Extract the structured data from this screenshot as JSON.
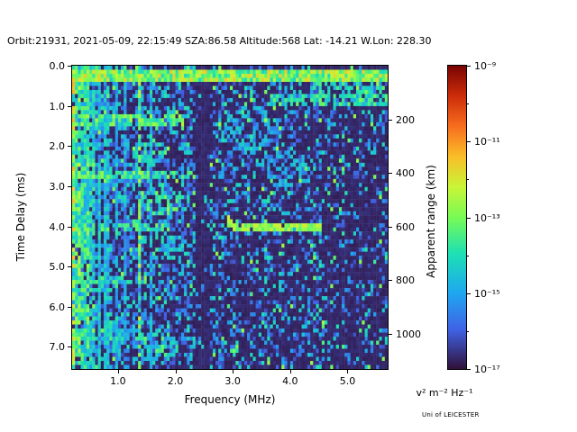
{
  "credit": "Uni of LEICESTER",
  "chart_data": {
    "type": "heatmap",
    "title": "Orbit:21931, 2021-05-09, 22:15:49 SZA:86.58 Altitude:568 Lat: -14.21 W.Lon: 228.30",
    "xlabel": "Frequency (MHz)",
    "ylabel": "Time Delay (ms)",
    "ylabel_right": "Apparent range (km)",
    "x_range_mhz": [
      0.2,
      5.7
    ],
    "y_range_ms": [
      0.0,
      7.55
    ],
    "km_per_ms": 150,
    "x_ticks": [
      {
        "v": 1.0,
        "label": "1.0"
      },
      {
        "v": 2.0,
        "label": "2.0"
      },
      {
        "v": 3.0,
        "label": "3.0"
      },
      {
        "v": 4.0,
        "label": "4.0"
      },
      {
        "v": 5.0,
        "label": "5.0"
      }
    ],
    "y_ticks": [
      {
        "v": 0.0,
        "label": "0.0"
      },
      {
        "v": 1.0,
        "label": "1.0"
      },
      {
        "v": 2.0,
        "label": "2.0"
      },
      {
        "v": 3.0,
        "label": "3.0"
      },
      {
        "v": 4.0,
        "label": "4.0"
      },
      {
        "v": 5.0,
        "label": "5.0"
      },
      {
        "v": 6.0,
        "label": "6.0"
      },
      {
        "v": 7.0,
        "label": "7.0"
      }
    ],
    "y2_ticks": [
      {
        "v": 200,
        "label": "200"
      },
      {
        "v": 400,
        "label": "400"
      },
      {
        "v": 600,
        "label": "600"
      },
      {
        "v": 800,
        "label": "800"
      },
      {
        "v": 1000,
        "label": "1000"
      }
    ],
    "colorbar": {
      "unit_label": "v² m⁻² Hz⁻¹",
      "scale": "log",
      "min": "1e-17",
      "max": "1e-9",
      "ticks": [
        {
          "exp": -9,
          "label": "10⁻⁹"
        },
        {
          "exp": -11,
          "label": "10⁻¹¹"
        },
        {
          "exp": -13,
          "label": "10⁻¹³"
        },
        {
          "exp": -15,
          "label": "10⁻¹⁵"
        },
        {
          "exp": -17,
          "label": "10⁻¹⁷"
        }
      ],
      "minor_tick_exps": [
        -10,
        -12,
        -14,
        -16
      ],
      "colormap": "turbo",
      "colormap_stops": [
        [
          0.0,
          48,
          18,
          59
        ],
        [
          0.13,
          64,
          98,
          230
        ],
        [
          0.25,
          30,
          167,
          240
        ],
        [
          0.38,
          28,
          224,
          180
        ],
        [
          0.5,
          120,
          250,
          85
        ],
        [
          0.6,
          200,
          245,
          55
        ],
        [
          0.7,
          250,
          190,
          40
        ],
        [
          0.8,
          248,
          110,
          30
        ],
        [
          0.9,
          205,
          45,
          10
        ],
        [
          1.0,
          122,
          4,
          3
        ]
      ]
    },
    "grid": {
      "ncols": 110,
      "nrows": 75
    },
    "seed": 12345,
    "background": {
      "base": 0.02,
      "jitter": 0.03
    },
    "speckle": {
      "regions": [
        {
          "f1": 2.3,
          "density": 0.42
        },
        {
          "f1": 4.6,
          "density": 0.3
        },
        {
          "f1": 5.8,
          "density": 0.2
        }
      ],
      "lo": 0.1,
      "range": 0.3,
      "pop": {
        "p": 0.04,
        "lo": 0.3,
        "range": 0.25
      }
    },
    "features": {
      "vertical_lines": [
        {
          "f": 0.22,
          "amp": 0.72
        },
        {
          "f": 0.27,
          "amp": 0.55
        },
        {
          "f": 0.33,
          "amp": 0.6
        },
        {
          "f": 0.4,
          "amp": 0.5
        },
        {
          "f": 0.47,
          "amp": 0.55
        },
        {
          "f": 0.55,
          "amp": 0.45
        },
        {
          "f": 0.66,
          "amp": 0.42
        },
        {
          "f": 0.8,
          "amp": 0.38
        },
        {
          "f": 0.97,
          "amp": 0.36
        },
        {
          "f": 1.13,
          "amp": 0.33
        },
        {
          "f": 1.36,
          "amp": 0.62
        },
        {
          "f": 1.58,
          "amp": 0.35
        }
      ],
      "line_halfwidth_mhz": 0.026,
      "line_dropout": 0.15,
      "cyclotron_bands": [
        {
          "d": 1.38,
          "amp": 0.58,
          "fmin": 0.2,
          "fmax": 2.15,
          "h": 0.13,
          "p": 0.75
        },
        {
          "d": 2.7,
          "amp": 0.55,
          "fmin": 0.2,
          "fmax": 2.3,
          "h": 0.13,
          "p": 0.7
        },
        {
          "d": 4.03,
          "amp": 0.52,
          "fmin": 0.2,
          "fmax": 1.9,
          "h": 0.13,
          "p": 0.65
        },
        {
          "d": 5.35,
          "amp": 0.5,
          "fmin": 0.2,
          "fmax": 1.5,
          "h": 0.13,
          "p": 0.6
        },
        {
          "d": 6.7,
          "amp": 0.45,
          "fmin": 0.2,
          "fmax": 1.35,
          "h": 0.13,
          "p": 0.55
        },
        {
          "d": 0.85,
          "amp": 0.5,
          "fmin": 3.6,
          "fmax": 5.7,
          "h": 0.12,
          "p": 0.7
        }
      ],
      "top_band": {
        "d0": 0.12,
        "d1": 0.42,
        "lo": 0.35,
        "range": 0.33
      },
      "echo_trace": {
        "f0": 2.88,
        "f1": 4.55,
        "d": 4.03,
        "half": 0.11,
        "amp": 0.62,
        "hook_f": 3.05,
        "hook_slope": 1.2,
        "p": 0.95
      },
      "dark_column": {
        "f0": 2.35,
        "f1": 2.62,
        "suppress": 0.22
      },
      "blobs": [
        {
          "f": 1.75,
          "d": 3.35,
          "rf": 0.35,
          "rd": 0.4,
          "amp": 0.5,
          "p": 0.5
        },
        {
          "f": 1.55,
          "d": 2.15,
          "rf": 0.3,
          "rd": 0.3,
          "amp": 0.45,
          "p": 0.5
        },
        {
          "f": 1.7,
          "d": 7.0,
          "rf": 0.4,
          "rd": 0.35,
          "amp": 0.5,
          "p": 0.5
        },
        {
          "f": 0.95,
          "d": 6.55,
          "rf": 0.25,
          "rd": 0.3,
          "amp": 0.45,
          "p": 0.5
        },
        {
          "f": 2.0,
          "d": 4.55,
          "rf": 0.3,
          "rd": 0.3,
          "amp": 0.42,
          "p": 0.45
        },
        {
          "f": 3.3,
          "d": 1.6,
          "rf": 0.5,
          "rd": 0.6,
          "amp": 0.35,
          "p": 0.35
        },
        {
          "f": 3.9,
          "d": 2.6,
          "rf": 0.5,
          "rd": 0.5,
          "amp": 0.33,
          "p": 0.3
        },
        {
          "f": 4.9,
          "d": 0.55,
          "rf": 0.7,
          "rd": 0.25,
          "amp": 0.45,
          "p": 0.45
        }
      ]
    }
  }
}
